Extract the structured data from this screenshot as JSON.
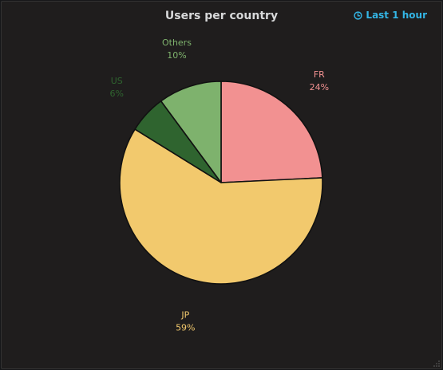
{
  "panel": {
    "title": "Users per country",
    "time_range_label": "Last 1 hour",
    "time_range_icon": "clock-icon",
    "accent_color": "#33b5e5"
  },
  "chart_data": {
    "type": "pie",
    "title": "Users per country",
    "slices": [
      {
        "label": "FR",
        "value": 24,
        "percent_label": "24%",
        "color": "#f29191"
      },
      {
        "label": "JP",
        "value": 59,
        "percent_label": "59%",
        "color": "#f2c96d"
      },
      {
        "label": "US",
        "value": 6,
        "percent_label": "6%",
        "color": "#2f642f"
      },
      {
        "label": "Others",
        "value": 10,
        "percent_label": "10%",
        "color": "#7eb26d"
      }
    ],
    "legend": "none",
    "slice_border_color": "#1f1d1d"
  }
}
